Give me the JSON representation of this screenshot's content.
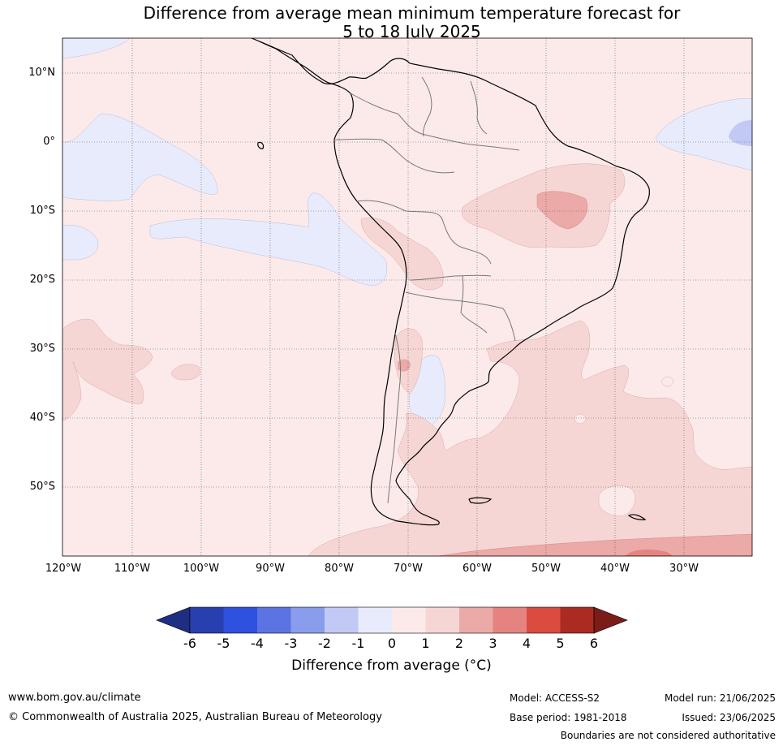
{
  "title": {
    "line1": "Difference from average mean minimum temperature forecast for",
    "line2": "5 to 18 July 2025"
  },
  "map": {
    "lat_labels": [
      "10°N",
      "0°",
      "10°S",
      "20°S",
      "30°S",
      "40°S",
      "50°S"
    ],
    "lon_labels": [
      "120°W",
      "110°W",
      "100°W",
      "90°W",
      "80°W",
      "70°W",
      "60°W",
      "50°W",
      "40°W",
      "30°W"
    ],
    "background_color": "#fceaea"
  },
  "colorbar": {
    "ticks": [
      "-6",
      "-5",
      "-4",
      "-3",
      "-2",
      "-1",
      "0",
      "1",
      "2",
      "3",
      "4",
      "5",
      "6"
    ],
    "colors": [
      "#1f2d82",
      "#283fb0",
      "#2f51e0",
      "#5c74e2",
      "#8a9cec",
      "#c1c9f4",
      "#e8ebfb",
      "#fceaea",
      "#f6d6d5",
      "#eba9a7",
      "#e58380",
      "#db4b40",
      "#ab2b23",
      "#7a1d18"
    ],
    "label": "Difference from average (°C)"
  },
  "footer": {
    "website": "www.bom.gov.au/climate",
    "copyright": "© Commonwealth of Australia 2025, Australian Bureau of Meteorology",
    "model": "Model: ACCESS-S2",
    "base_period": "Base period: 1981-2018",
    "model_run": "Model run: 21/06/2025",
    "issued": "Issued: 23/06/2025",
    "disclaimer": "Boundaries are not considered authoritative"
  }
}
